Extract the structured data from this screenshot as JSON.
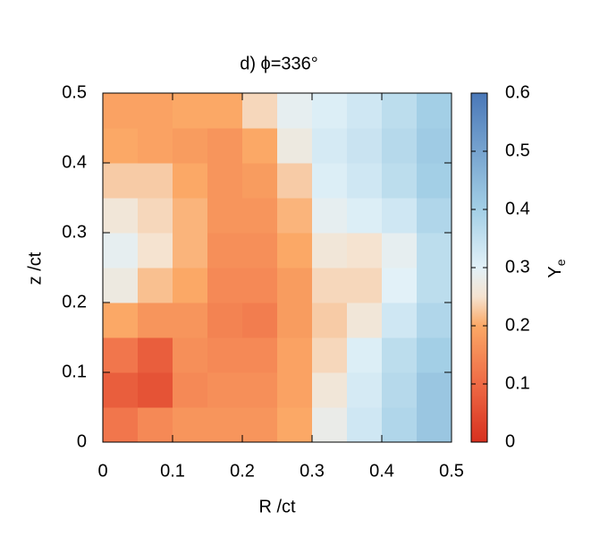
{
  "chart_data": {
    "type": "heatmap",
    "title": "d) ϕ=336°",
    "x_label": "R /ct",
    "y_label": "z /ct",
    "colorbar_label": {
      "text": "Y",
      "subscript": "e"
    },
    "x": [
      0.025,
      0.075,
      0.125,
      0.175,
      0.225,
      0.275,
      0.325,
      0.375,
      0.425,
      0.475
    ],
    "y": [
      0.025,
      0.075,
      0.125,
      0.175,
      0.225,
      0.275,
      0.325,
      0.375,
      0.425,
      0.475
    ],
    "z": [
      [
        0.12,
        0.15,
        0.17,
        0.17,
        0.17,
        0.2,
        0.28,
        0.33,
        0.38,
        0.42
      ],
      [
        0.08,
        0.06,
        0.15,
        0.16,
        0.16,
        0.19,
        0.26,
        0.32,
        0.37,
        0.42
      ],
      [
        0.12,
        0.08,
        0.16,
        0.15,
        0.15,
        0.19,
        0.24,
        0.31,
        0.36,
        0.4
      ],
      [
        0.2,
        0.17,
        0.17,
        0.14,
        0.13,
        0.18,
        0.23,
        0.26,
        0.33,
        0.38
      ],
      [
        0.27,
        0.22,
        0.2,
        0.15,
        0.15,
        0.18,
        0.24,
        0.24,
        0.3,
        0.36
      ],
      [
        0.29,
        0.25,
        0.21,
        0.16,
        0.16,
        0.2,
        0.26,
        0.25,
        0.29,
        0.36
      ],
      [
        0.26,
        0.24,
        0.21,
        0.17,
        0.17,
        0.21,
        0.29,
        0.31,
        0.33,
        0.38
      ],
      [
        0.23,
        0.23,
        0.2,
        0.17,
        0.18,
        0.23,
        0.31,
        0.33,
        0.36,
        0.4
      ],
      [
        0.2,
        0.19,
        0.18,
        0.17,
        0.2,
        0.27,
        0.32,
        0.34,
        0.37,
        0.41
      ],
      [
        0.19,
        0.19,
        0.2,
        0.2,
        0.24,
        0.29,
        0.31,
        0.33,
        0.36,
        0.4
      ]
    ],
    "xlim": [
      0,
      0.5
    ],
    "ylim": [
      0,
      0.5
    ],
    "xticks": [
      0,
      0.1,
      0.2,
      0.3,
      0.4,
      0.5
    ],
    "yticks": [
      0,
      0.1,
      0.2,
      0.3,
      0.4,
      0.5
    ],
    "zlim": [
      0,
      0.6
    ],
    "zticks": [
      0,
      0.1,
      0.2,
      0.3,
      0.4,
      0.5,
      0.6
    ],
    "colorscale": [
      [
        0,
        "#d7301f"
      ],
      [
        0.1,
        "#ee6a45"
      ],
      [
        0.2,
        "#fba866"
      ],
      [
        0.25,
        "#f5e3d0"
      ],
      [
        0.3,
        "#e2f1f8"
      ],
      [
        0.4,
        "#a3cfe6"
      ],
      [
        0.6,
        "#4a78b8"
      ]
    ]
  }
}
